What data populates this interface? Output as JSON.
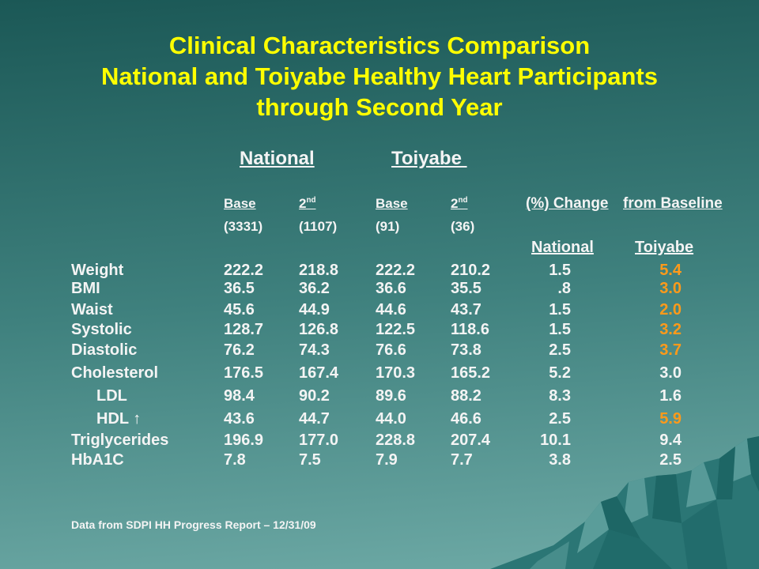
{
  "title": {
    "lines": [
      "Clinical Characteristics Comparison",
      "National and Toiyabe Healthy Heart Participants",
      "through Second Year"
    ]
  },
  "group_headers": {
    "national": "National",
    "toiyabe": "Toiyabe "
  },
  "sub_headers": {
    "base_1": "Base",
    "second_1": {
      "num": "2",
      "sup": "nd"
    },
    "base_2": "Base",
    "second_2": {
      "num": "2",
      "sup": "nd"
    }
  },
  "change_header": {
    "part1": "(%) Change",
    "part2": "from Baseline",
    "national": "National",
    "toiyabe": "Toiyabe"
  },
  "counts": [
    "(3331)",
    "(1107)",
    "(91)",
    "(36)"
  ],
  "rows": [
    {
      "label": "Weight",
      "national_base": "222.2",
      "national_2nd": "218.8",
      "toiyabe_base": "222.2",
      "toiyabe_2nd": "210.2",
      "change_national": "1.5",
      "change_toiyabe": "5.4",
      "highlight": true
    },
    {
      "label": "BMI",
      "national_base": "36.5",
      "national_2nd": "36.2",
      "toiyabe_base": "36.6",
      "toiyabe_2nd": "35.5",
      "change_national": ".8",
      "change_toiyabe": "3.0",
      "highlight": true
    },
    {
      "label": "Waist",
      "national_base": "45.6",
      "national_2nd": "44.9",
      "toiyabe_base": "44.6",
      "toiyabe_2nd": "43.7",
      "change_national": "1.5",
      "change_toiyabe": "2.0",
      "highlight": true
    },
    {
      "label": "Systolic",
      "national_base": "128.7",
      "national_2nd": "126.8",
      "toiyabe_base": "122.5",
      "toiyabe_2nd": "118.6",
      "change_national": "1.5",
      "change_toiyabe": "3.2",
      "highlight": true
    },
    {
      "label": "Diastolic",
      "national_base": "76.2",
      "national_2nd": "74.3",
      "toiyabe_base": "76.6",
      "toiyabe_2nd": "73.8",
      "change_national": "2.5",
      "change_toiyabe": "3.7",
      "highlight": true
    },
    {
      "label": "Cholesterol",
      "national_base": "176.5",
      "national_2nd": "167.4",
      "toiyabe_base": "170.3",
      "toiyabe_2nd": "165.2",
      "change_national": "5.2",
      "change_toiyabe": "3.0",
      "highlight": false
    },
    {
      "label": "LDL",
      "sub_item": true,
      "national_base": "98.4",
      "national_2nd": "90.2",
      "toiyabe_base": "89.6",
      "toiyabe_2nd": "88.2",
      "change_national": "8.3",
      "change_toiyabe": "1.6",
      "highlight": false
    },
    {
      "label": "HDL ↑",
      "sub_item": true,
      "national_base": "43.6",
      "national_2nd": "44.7",
      "toiyabe_base": "44.0",
      "toiyabe_2nd": "46.6",
      "change_national": "2.5",
      "change_toiyabe": "5.9",
      "highlight": true
    },
    {
      "label": "Triglycerides",
      "national_base": "196.9",
      "national_2nd": "177.0",
      "toiyabe_base": "228.8",
      "toiyabe_2nd": "207.4",
      "change_national": "10.1",
      "change_toiyabe": "9.4",
      "highlight": false
    },
    {
      "label": "HbA1C",
      "national_base": "7.8",
      "national_2nd": "7.5",
      "toiyabe_base": "7.9",
      "toiyabe_2nd": "7.7",
      "change_national": "3.8",
      "change_toiyabe": "2.5",
      "highlight": false
    }
  ],
  "footnote": "Data from SDPI HH Progress Report – 12/31/09",
  "colors": {
    "background_top": "#1b5856",
    "background_mid": "#3f817e",
    "background_bottom": "#6eaaa6",
    "title": "#ffff00",
    "text": "#f4f4f4",
    "highlight": "#ff9a1a",
    "mountain_dark": "#1d6665",
    "mountain_mid": "#2b7675",
    "mountain_light": "#63a4a1"
  }
}
